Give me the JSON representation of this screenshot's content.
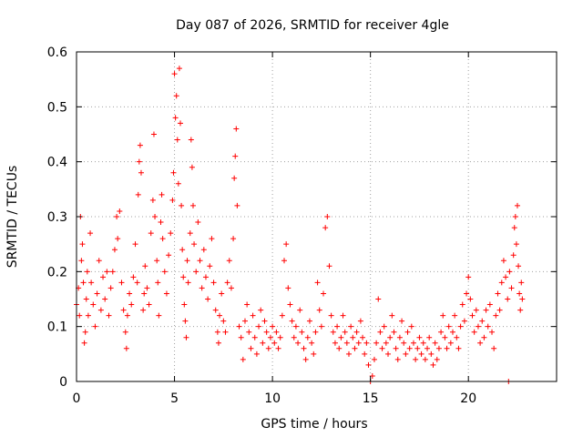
{
  "chart_data": {
    "type": "scatter",
    "title": "Day 087 of 2026, SRMTID for receiver 4gle",
    "xlabel": "GPS time / hours",
    "ylabel": "SRMTID / TECUs",
    "xlim": [
      0,
      24.5
    ],
    "ylim": [
      0,
      0.6
    ],
    "xticks": [
      "0",
      "5",
      "10",
      "15",
      "20"
    ],
    "yticks": [
      "0",
      "0.1",
      "0.2",
      "0.3",
      "0.4",
      "0.5",
      "0.6"
    ],
    "grid": true,
    "marker": "plus",
    "color": "#ff0000",
    "series": [
      {
        "name": "SRMTID",
        "points": [
          [
            0.0,
            0.14
          ],
          [
            0.1,
            0.17
          ],
          [
            0.15,
            0.12
          ],
          [
            0.2,
            0.3
          ],
          [
            0.25,
            0.22
          ],
          [
            0.3,
            0.25
          ],
          [
            0.35,
            0.18
          ],
          [
            0.4,
            0.07
          ],
          [
            0.45,
            0.09
          ],
          [
            0.5,
            0.15
          ],
          [
            0.55,
            0.2
          ],
          [
            0.6,
            0.12
          ],
          [
            0.7,
            0.27
          ],
          [
            0.75,
            0.18
          ],
          [
            0.85,
            0.14
          ],
          [
            0.95,
            0.1
          ],
          [
            1.05,
            0.16
          ],
          [
            1.15,
            0.22
          ],
          [
            1.25,
            0.13
          ],
          [
            1.35,
            0.19
          ],
          [
            1.45,
            0.15
          ],
          [
            1.55,
            0.2
          ],
          [
            1.65,
            0.12
          ],
          [
            1.75,
            0.17
          ],
          [
            1.85,
            0.2
          ],
          [
            1.95,
            0.24
          ],
          [
            2.05,
            0.3
          ],
          [
            2.1,
            0.26
          ],
          [
            2.2,
            0.31
          ],
          [
            2.3,
            0.18
          ],
          [
            2.4,
            0.13
          ],
          [
            2.5,
            0.09
          ],
          [
            2.55,
            0.06
          ],
          [
            2.6,
            0.12
          ],
          [
            2.7,
            0.16
          ],
          [
            2.8,
            0.14
          ],
          [
            2.9,
            0.19
          ],
          [
            3.0,
            0.25
          ],
          [
            3.1,
            0.18
          ],
          [
            3.15,
            0.34
          ],
          [
            3.2,
            0.4
          ],
          [
            3.25,
            0.43
          ],
          [
            3.3,
            0.38
          ],
          [
            3.4,
            0.13
          ],
          [
            3.45,
            0.16
          ],
          [
            3.5,
            0.21
          ],
          [
            3.6,
            0.17
          ],
          [
            3.7,
            0.14
          ],
          [
            3.8,
            0.27
          ],
          [
            3.9,
            0.33
          ],
          [
            3.95,
            0.45
          ],
          [
            4.0,
            0.3
          ],
          [
            4.1,
            0.22
          ],
          [
            4.15,
            0.18
          ],
          [
            4.2,
            0.12
          ],
          [
            4.3,
            0.29
          ],
          [
            4.35,
            0.34
          ],
          [
            4.4,
            0.26
          ],
          [
            4.5,
            0.2
          ],
          [
            4.6,
            0.16
          ],
          [
            4.7,
            0.23
          ],
          [
            4.8,
            0.27
          ],
          [
            4.9,
            0.33
          ],
          [
            4.95,
            0.38
          ],
          [
            5.0,
            0.56
          ],
          [
            5.05,
            0.48
          ],
          [
            5.1,
            0.52
          ],
          [
            5.15,
            0.44
          ],
          [
            5.2,
            0.36
          ],
          [
            5.25,
            0.57
          ],
          [
            5.3,
            0.47
          ],
          [
            5.35,
            0.32
          ],
          [
            5.4,
            0.24
          ],
          [
            5.45,
            0.19
          ],
          [
            5.5,
            0.14
          ],
          [
            5.55,
            0.11
          ],
          [
            5.6,
            0.08
          ],
          [
            5.65,
            0.22
          ],
          [
            5.7,
            0.18
          ],
          [
            5.8,
            0.27
          ],
          [
            5.85,
            0.44
          ],
          [
            5.9,
            0.39
          ],
          [
            5.95,
            0.32
          ],
          [
            6.0,
            0.25
          ],
          [
            6.1,
            0.2
          ],
          [
            6.2,
            0.29
          ],
          [
            6.3,
            0.22
          ],
          [
            6.4,
            0.17
          ],
          [
            6.5,
            0.24
          ],
          [
            6.6,
            0.19
          ],
          [
            6.7,
            0.15
          ],
          [
            6.8,
            0.21
          ],
          [
            6.9,
            0.26
          ],
          [
            7.0,
            0.18
          ],
          [
            7.1,
            0.13
          ],
          [
            7.2,
            0.09
          ],
          [
            7.25,
            0.07
          ],
          [
            7.3,
            0.12
          ],
          [
            7.4,
            0.16
          ],
          [
            7.5,
            0.11
          ],
          [
            7.6,
            0.09
          ],
          [
            7.7,
            0.18
          ],
          [
            7.8,
            0.22
          ],
          [
            7.9,
            0.17
          ],
          [
            8.0,
            0.26
          ],
          [
            8.05,
            0.37
          ],
          [
            8.1,
            0.41
          ],
          [
            8.15,
            0.46
          ],
          [
            8.2,
            0.32
          ],
          [
            8.3,
            0.1
          ],
          [
            8.4,
            0.08
          ],
          [
            8.5,
            0.04
          ],
          [
            8.6,
            0.11
          ],
          [
            8.7,
            0.14
          ],
          [
            8.8,
            0.09
          ],
          [
            8.9,
            0.06
          ],
          [
            9.0,
            0.12
          ],
          [
            9.1,
            0.08
          ],
          [
            9.2,
            0.05
          ],
          [
            9.3,
            0.1
          ],
          [
            9.4,
            0.13
          ],
          [
            9.5,
            0.07
          ],
          [
            9.6,
            0.11
          ],
          [
            9.7,
            0.09
          ],
          [
            9.8,
            0.06
          ],
          [
            9.9,
            0.08
          ],
          [
            10.0,
            0.1
          ],
          [
            10.1,
            0.07
          ],
          [
            10.2,
            0.09
          ],
          [
            10.3,
            0.06
          ],
          [
            10.4,
            0.08
          ],
          [
            10.5,
            0.12
          ],
          [
            10.6,
            0.22
          ],
          [
            10.7,
            0.25
          ],
          [
            10.8,
            0.17
          ],
          [
            10.9,
            0.14
          ],
          [
            11.0,
            0.11
          ],
          [
            11.1,
            0.08
          ],
          [
            11.2,
            0.1
          ],
          [
            11.3,
            0.07
          ],
          [
            11.4,
            0.13
          ],
          [
            11.5,
            0.09
          ],
          [
            11.6,
            0.06
          ],
          [
            11.7,
            0.04
          ],
          [
            11.8,
            0.08
          ],
          [
            11.9,
            0.11
          ],
          [
            12.0,
            0.07
          ],
          [
            12.1,
            0.05
          ],
          [
            12.2,
            0.09
          ],
          [
            12.3,
            0.18
          ],
          [
            12.4,
            0.13
          ],
          [
            12.5,
            0.1
          ],
          [
            12.6,
            0.16
          ],
          [
            12.7,
            0.28
          ],
          [
            12.8,
            0.3
          ],
          [
            12.9,
            0.21
          ],
          [
            13.0,
            0.12
          ],
          [
            13.1,
            0.09
          ],
          [
            13.2,
            0.07
          ],
          [
            13.3,
            0.1
          ],
          [
            13.4,
            0.06
          ],
          [
            13.5,
            0.08
          ],
          [
            13.6,
            0.12
          ],
          [
            13.7,
            0.09
          ],
          [
            13.8,
            0.07
          ],
          [
            13.9,
            0.05
          ],
          [
            14.0,
            0.1
          ],
          [
            14.1,
            0.08
          ],
          [
            14.2,
            0.06
          ],
          [
            14.3,
            0.09
          ],
          [
            14.4,
            0.07
          ],
          [
            14.5,
            0.11
          ],
          [
            14.6,
            0.08
          ],
          [
            14.7,
            0.05
          ],
          [
            14.8,
            0.07
          ],
          [
            14.9,
            0.03
          ],
          [
            15.0,
            0.0
          ],
          [
            15.1,
            0.01
          ],
          [
            15.2,
            0.04
          ],
          [
            15.3,
            0.07
          ],
          [
            15.4,
            0.15
          ],
          [
            15.5,
            0.09
          ],
          [
            15.6,
            0.06
          ],
          [
            15.7,
            0.1
          ],
          [
            15.8,
            0.07
          ],
          [
            15.9,
            0.05
          ],
          [
            16.0,
            0.08
          ],
          [
            16.1,
            0.12
          ],
          [
            16.2,
            0.09
          ],
          [
            16.3,
            0.06
          ],
          [
            16.4,
            0.04
          ],
          [
            16.5,
            0.08
          ],
          [
            16.6,
            0.11
          ],
          [
            16.7,
            0.07
          ],
          [
            16.8,
            0.05
          ],
          [
            16.9,
            0.09
          ],
          [
            17.0,
            0.06
          ],
          [
            17.1,
            0.1
          ],
          [
            17.2,
            0.07
          ],
          [
            17.3,
            0.04
          ],
          [
            17.4,
            0.06
          ],
          [
            17.5,
            0.08
          ],
          [
            17.6,
            0.05
          ],
          [
            17.7,
            0.07
          ],
          [
            17.8,
            0.04
          ],
          [
            17.9,
            0.06
          ],
          [
            18.0,
            0.08
          ],
          [
            18.1,
            0.05
          ],
          [
            18.2,
            0.03
          ],
          [
            18.3,
            0.07
          ],
          [
            18.4,
            0.04
          ],
          [
            18.5,
            0.06
          ],
          [
            18.6,
            0.09
          ],
          [
            18.7,
            0.12
          ],
          [
            18.8,
            0.08
          ],
          [
            18.9,
            0.06
          ],
          [
            19.0,
            0.1
          ],
          [
            19.1,
            0.07
          ],
          [
            19.2,
            0.09
          ],
          [
            19.3,
            0.12
          ],
          [
            19.4,
            0.08
          ],
          [
            19.5,
            0.06
          ],
          [
            19.6,
            0.1
          ],
          [
            19.7,
            0.14
          ],
          [
            19.8,
            0.11
          ],
          [
            19.9,
            0.16
          ],
          [
            20.0,
            0.19
          ],
          [
            20.1,
            0.15
          ],
          [
            20.2,
            0.12
          ],
          [
            20.3,
            0.09
          ],
          [
            20.4,
            0.13
          ],
          [
            20.5,
            0.1
          ],
          [
            20.6,
            0.07
          ],
          [
            20.7,
            0.11
          ],
          [
            20.8,
            0.08
          ],
          [
            20.9,
            0.13
          ],
          [
            21.0,
            0.1
          ],
          [
            21.1,
            0.14
          ],
          [
            21.2,
            0.09
          ],
          [
            21.3,
            0.06
          ],
          [
            21.4,
            0.12
          ],
          [
            21.5,
            0.16
          ],
          [
            21.6,
            0.13
          ],
          [
            21.7,
            0.18
          ],
          [
            21.8,
            0.22
          ],
          [
            21.9,
            0.19
          ],
          [
            22.0,
            0.15
          ],
          [
            22.05,
            0.0
          ],
          [
            22.1,
            0.2
          ],
          [
            22.2,
            0.17
          ],
          [
            22.3,
            0.23
          ],
          [
            22.35,
            0.28
          ],
          [
            22.4,
            0.3
          ],
          [
            22.45,
            0.25
          ],
          [
            22.5,
            0.32
          ],
          [
            22.55,
            0.21
          ],
          [
            22.6,
            0.16
          ],
          [
            22.65,
            0.13
          ],
          [
            22.7,
            0.18
          ],
          [
            22.75,
            0.15
          ]
        ]
      }
    ]
  }
}
